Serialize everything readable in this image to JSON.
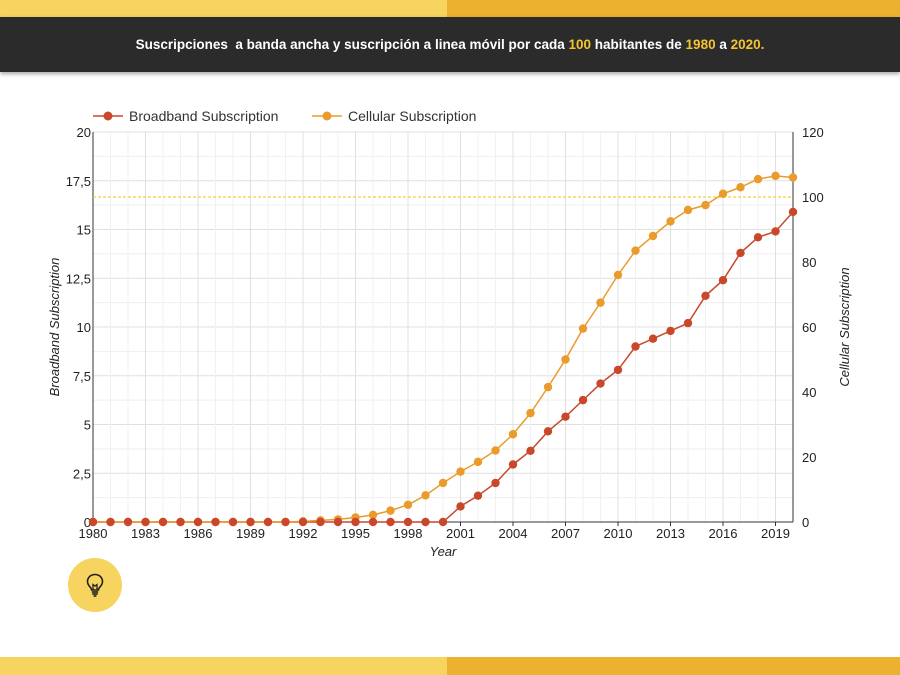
{
  "header": {
    "title_parts": [
      {
        "text": "Suscripciones  a banda ancha y suscripción a linea móvil por cada ",
        "hl": false
      },
      {
        "text": "100",
        "hl": true
      },
      {
        "text": " habitantes de ",
        "hl": false
      },
      {
        "text": "1980",
        "hl": true
      },
      {
        "text": " a ",
        "hl": false
      },
      {
        "text": "2020.",
        "hl": true
      }
    ]
  },
  "colors": {
    "broadband": "#c9472b",
    "cellular": "#ea9b2c",
    "reference_line": "#f4cf3d",
    "header_bg": "#2b2b2b",
    "highlight": "#f4c430"
  },
  "icons": {
    "bulb": "lightbulb-icon"
  },
  "chart_data": {
    "type": "line",
    "xlabel": "Year",
    "ylabel_left": "Broadband Subscription",
    "ylabel_right": "Cellular Subscription",
    "xlim": [
      1980,
      2020
    ],
    "ylim_left": [
      0,
      20
    ],
    "ylim_right": [
      0,
      120
    ],
    "x_ticks": [
      1980,
      1983,
      1986,
      1989,
      1992,
      1995,
      1998,
      2001,
      2004,
      2007,
      2010,
      2013,
      2016,
      2019
    ],
    "y_ticks_left": [
      "0",
      "2,5",
      "5",
      "7,5",
      "10",
      "12,5",
      "15",
      "17,5",
      "20"
    ],
    "y_ticks_right": [
      "0",
      "20",
      "40",
      "60",
      "80",
      "100",
      "120"
    ],
    "reference_line": {
      "axis": "right",
      "value": 100
    },
    "legend_position": "top-left",
    "grid": true,
    "x": [
      1980,
      1981,
      1982,
      1983,
      1984,
      1985,
      1986,
      1987,
      1988,
      1989,
      1990,
      1991,
      1992,
      1993,
      1994,
      1995,
      1996,
      1997,
      1998,
      1999,
      2000,
      2001,
      2002,
      2003,
      2004,
      2005,
      2006,
      2007,
      2008,
      2009,
      2010,
      2011,
      2012,
      2013,
      2014,
      2015,
      2016,
      2017,
      2018,
      2019,
      2020
    ],
    "series": [
      {
        "name": "Broadband Subscription",
        "axis": "left",
        "values": [
          0,
          0,
          0,
          0,
          0,
          0,
          0,
          0,
          0,
          0,
          0,
          0,
          0,
          0,
          0,
          0,
          0,
          0,
          0,
          0,
          0,
          0.8,
          1.35,
          2.0,
          2.95,
          3.65,
          4.65,
          5.4,
          6.25,
          7.1,
          7.8,
          9.0,
          9.4,
          9.8,
          10.2,
          11.6,
          12.4,
          13.8,
          14.6,
          14.9,
          15.9
        ]
      },
      {
        "name": "Cellular Subscription",
        "axis": "right",
        "values": [
          0,
          0,
          0,
          0,
          0,
          0,
          0,
          0,
          0,
          0,
          0,
          0,
          0.2,
          0.5,
          0.8,
          1.4,
          2.2,
          3.5,
          5.3,
          8.2,
          12.0,
          15.5,
          18.5,
          22.0,
          27.0,
          33.5,
          41.5,
          50.0,
          59.5,
          67.5,
          76.0,
          83.5,
          88.0,
          92.5,
          96.0,
          97.5,
          101.0,
          103.0,
          105.5,
          106.5,
          106.0
        ]
      }
    ]
  }
}
